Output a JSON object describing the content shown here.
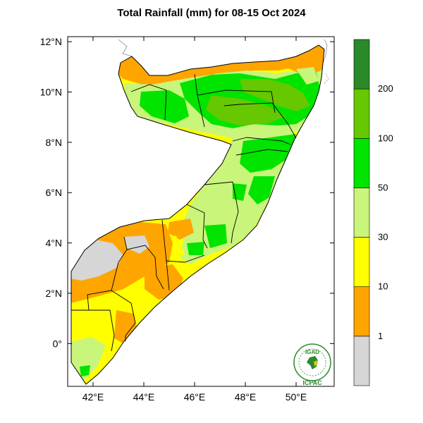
{
  "title": "Total Rainfall (mm) for 08-15 Oct 2024",
  "map": {
    "lon_range": [
      41,
      51.5
    ],
    "lat_range": [
      -1.7,
      12.2
    ],
    "lon_ticks": [
      {
        "value": 42,
        "label": "42°E"
      },
      {
        "value": 44,
        "label": "44°E"
      },
      {
        "value": 46,
        "label": "46°E"
      },
      {
        "value": 48,
        "label": "48°E"
      },
      {
        "value": 50,
        "label": "50°E"
      }
    ],
    "lat_ticks": [
      {
        "value": 12,
        "label": "12°N"
      },
      {
        "value": 10,
        "label": "10°N"
      },
      {
        "value": 8,
        "label": "8°N"
      },
      {
        "value": 6,
        "label": "6°N"
      },
      {
        "value": 4,
        "label": "4°N"
      },
      {
        "value": 2,
        "label": "2°N"
      },
      {
        "value": 0,
        "label": "0°"
      }
    ]
  },
  "colorbar": {
    "segments": [
      {
        "color": "#d6d6d6",
        "label": ""
      },
      {
        "color": "#ffa500",
        "label": "1"
      },
      {
        "color": "#ffff00",
        "label": "10"
      },
      {
        "color": "#c8f57a",
        "label": "30"
      },
      {
        "color": "#00e400",
        "label": "50"
      },
      {
        "color": "#66c800",
        "label": "100"
      },
      {
        "color": "#2a8a2a",
        "label": "200"
      }
    ]
  },
  "logo": {
    "top_text": "IGAD",
    "bottom_text": "ICPAC"
  },
  "colors": {
    "orange": "#ffa500",
    "yellow": "#ffff00",
    "lightgreen": "#c8f57a",
    "green": "#00e400",
    "midgreen": "#66c800",
    "gray": "#d6d6d6",
    "border": "#000000"
  }
}
